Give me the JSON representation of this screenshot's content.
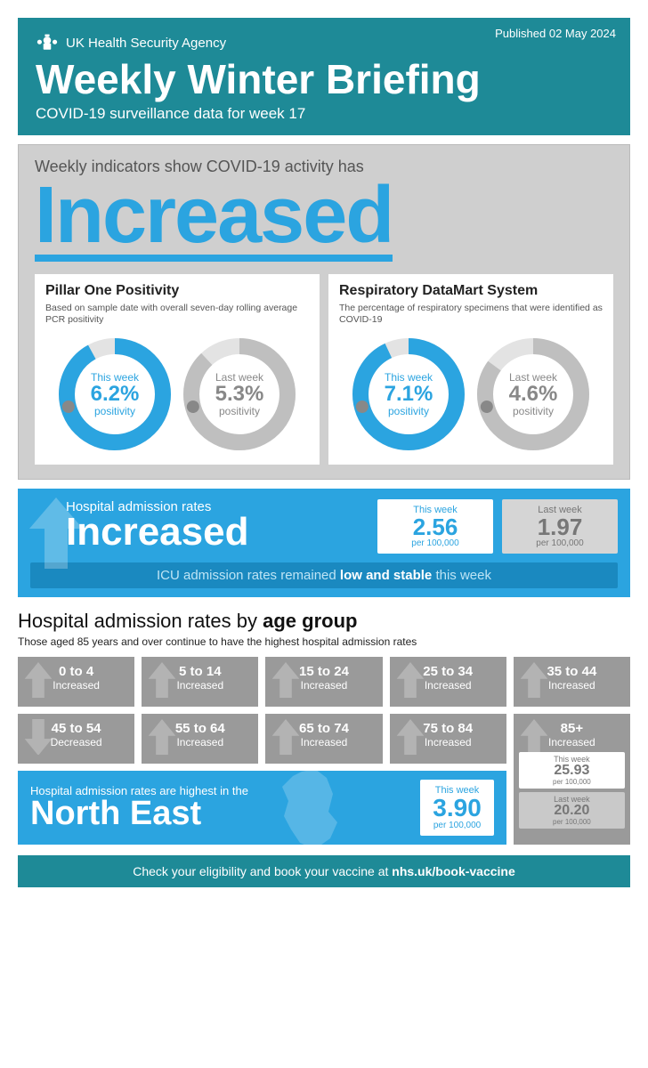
{
  "header": {
    "published": "Published 02 May 2024",
    "agency": "UK Health Security Agency",
    "title": "Weekly Winter Briefing",
    "subtitle": "COVID-19 surveillance data for week 17"
  },
  "indicator": {
    "lead": "Weekly indicators show COVID-19 activity has",
    "word": "Increased",
    "color": "#2ba4e0"
  },
  "cards": [
    {
      "title": "Pillar One Positivity",
      "desc": "Based on sample date with overall seven-day rolling average PCR positivity",
      "this": {
        "label": "This week",
        "value": "6.2%",
        "pos": "positivity",
        "pct": 92,
        "ring": "#2ba4e0"
      },
      "last": {
        "label": "Last week",
        "value": "5.3%",
        "pos": "positivity",
        "pct": 88,
        "ring": "#bfbfbf"
      }
    },
    {
      "title": "Respiratory DataMart System",
      "desc": "The percentage of respiratory specimens that were identified as COVID-19",
      "this": {
        "label": "This week",
        "value": "7.1%",
        "pos": "positivity",
        "pct": 93,
        "ring": "#2ba4e0"
      },
      "last": {
        "label": "Last week",
        "value": "4.6%",
        "pos": "positivity",
        "pct": 85,
        "ring": "#bfbfbf"
      }
    }
  ],
  "hospital": {
    "lead": "Hospital admission rates",
    "word": "Increased",
    "this": {
      "label": "This week",
      "value": "2.56",
      "per": "per 100,000"
    },
    "last": {
      "label": "Last week",
      "value": "1.97",
      "per": "per 100,000"
    },
    "icu_pre": "ICU admission rates remained ",
    "icu_bold": "low and stable",
    "icu_post": " this week"
  },
  "age": {
    "heading_pre": "Hospital admission rates by ",
    "heading_bold": "age group",
    "sub": "Those aged 85 years and over continue to have the highest hospital admission rates",
    "tiles": [
      {
        "label": "0 to 4",
        "status": "Increased",
        "dir": "up"
      },
      {
        "label": "5 to 14",
        "status": "Increased",
        "dir": "up"
      },
      {
        "label": "15 to 24",
        "status": "Increased",
        "dir": "up"
      },
      {
        "label": "25 to 34",
        "status": "Increased",
        "dir": "up"
      },
      {
        "label": "35 to 44",
        "status": "Increased",
        "dir": "up"
      },
      {
        "label": "45 to 54",
        "status": "Decreased",
        "dir": "down"
      },
      {
        "label": "55 to 64",
        "status": "Increased",
        "dir": "up"
      },
      {
        "label": "65 to 74",
        "status": "Increased",
        "dir": "up"
      },
      {
        "label": "75 to 84",
        "status": "Increased",
        "dir": "up"
      }
    ],
    "tile85": {
      "label": "85+",
      "status": "Increased",
      "this": {
        "label": "This week",
        "value": "25.93",
        "per": "per 100,000"
      },
      "last": {
        "label": "Last week",
        "value": "20.20",
        "per": "per 100,000"
      }
    }
  },
  "region": {
    "lead": "Hospital admission rates are highest in the",
    "name": "North East",
    "stat": {
      "label": "This week",
      "value": "3.90",
      "per": "per 100,000"
    }
  },
  "footer": {
    "pre": "Check your eligibility and book your vaccine at ",
    "url": "nhs.uk/book-vaccine"
  },
  "colors": {
    "teal": "#1e8a97",
    "blue": "#2ba4e0",
    "grey_bg": "#cfcfcf",
    "tile_grey": "#9a9a9a",
    "ring_track": "#e3e3e3"
  }
}
